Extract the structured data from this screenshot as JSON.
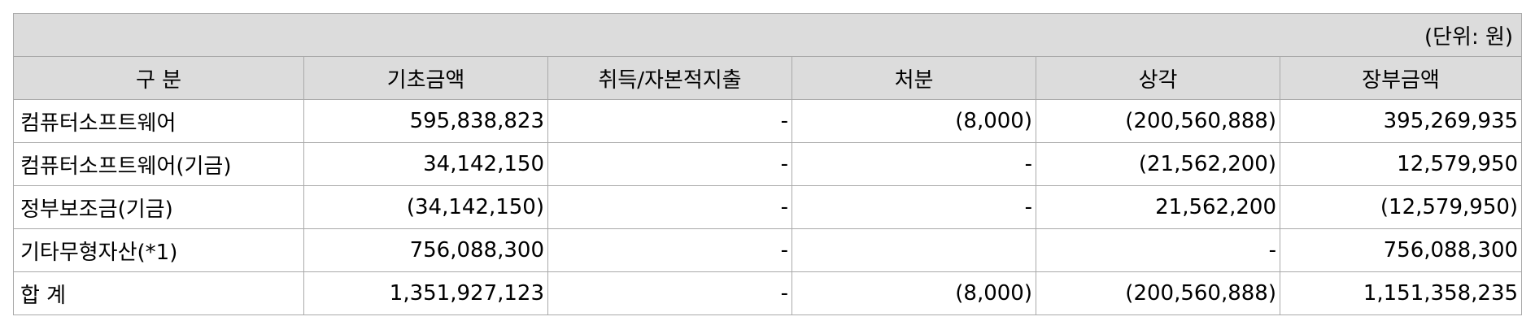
{
  "unit_note": "(단위: 원)",
  "columns": [
    "구 분",
    "기초금액",
    "취득/자본적지출",
    "처분",
    "상각",
    "장부금액"
  ],
  "rows": [
    {
      "label": "컴퓨터소프트웨어",
      "opening": "595,838,823",
      "acquisition": "-",
      "disposal": "(8,000)",
      "amortization": "(200,560,888)",
      "book_value": "395,269,935"
    },
    {
      "label": "컴퓨터소프트웨어(기금)",
      "opening": "34,142,150",
      "acquisition": "-",
      "disposal": "-",
      "amortization": "(21,562,200)",
      "book_value": "12,579,950"
    },
    {
      "label": "정부보조금(기금)",
      "opening": "(34,142,150)",
      "acquisition": "-",
      "disposal": "-",
      "amortization": "21,562,200",
      "book_value": "(12,579,950)"
    },
    {
      "label": "기타무형자산(*1)",
      "opening": "756,088,300",
      "acquisition": "-",
      "disposal": "",
      "amortization": "-",
      "book_value": "756,088,300"
    },
    {
      "label": "합 계",
      "opening": "1,351,927,123",
      "acquisition": "-",
      "disposal": "(8,000)",
      "amortization": "(200,560,888)",
      "book_value": "1,151,358,235"
    }
  ]
}
